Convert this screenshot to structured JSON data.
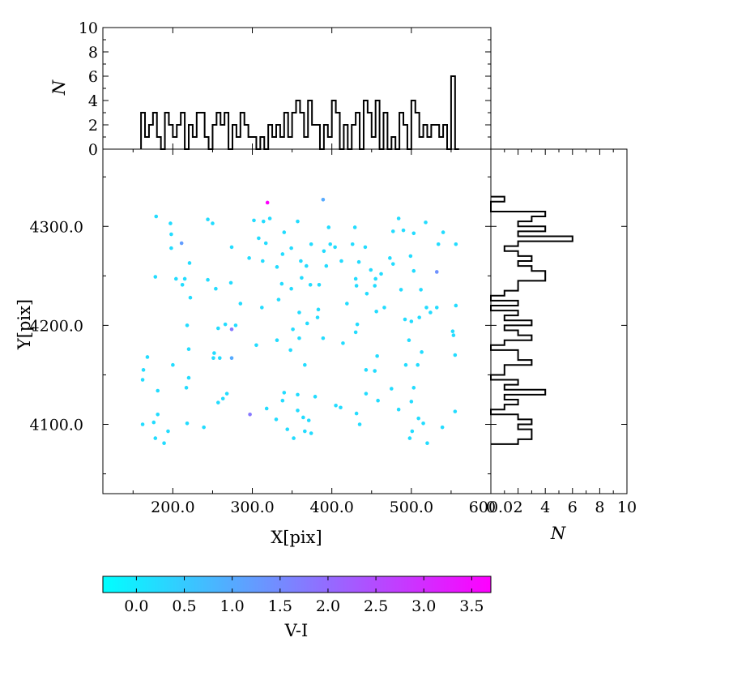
{
  "chart_data": [
    {
      "id": "scatter",
      "type": "scatter",
      "xlabel": "X[pix]",
      "ylabel": "Y[pix]",
      "xlim": [
        112,
        600
      ],
      "ylim": [
        4030,
        4378
      ],
      "xticks": [
        200,
        300,
        400,
        500,
        600
      ],
      "xtick_labels": [
        "200.0",
        "300.0",
        "400.0",
        "500.0",
        "600.0"
      ],
      "yticks": [
        4100,
        4200,
        4300
      ],
      "ytick_labels": [
        "4100.0",
        "4200.0",
        "4300.0"
      ],
      "grid": false,
      "color_by": "V-I",
      "points": [
        {
          "x": 319,
          "y": 4324,
          "c": 3.7
        },
        {
          "x": 389,
          "y": 4327,
          "c": 1.0
        },
        {
          "x": 179,
          "y": 4310,
          "c": 0.2
        },
        {
          "x": 244,
          "y": 4307,
          "c": 0.2
        },
        {
          "x": 302,
          "y": 4306,
          "c": 0.2
        },
        {
          "x": 314,
          "y": 4305,
          "c": 0.2
        },
        {
          "x": 322,
          "y": 4308,
          "c": 0.2
        },
        {
          "x": 357,
          "y": 4305,
          "c": 0.2
        },
        {
          "x": 484,
          "y": 4308,
          "c": 0.2
        },
        {
          "x": 518,
          "y": 4304,
          "c": 0.2
        },
        {
          "x": 197,
          "y": 4303,
          "c": 0.2
        },
        {
          "x": 250,
          "y": 4303,
          "c": 0.2
        },
        {
          "x": 396,
          "y": 4299,
          "c": 0.2
        },
        {
          "x": 429,
          "y": 4299,
          "c": 0.2
        },
        {
          "x": 490,
          "y": 4296,
          "c": 0.2
        },
        {
          "x": 477,
          "y": 4295,
          "c": 0.2
        },
        {
          "x": 340,
          "y": 4294,
          "c": 0.2
        },
        {
          "x": 198,
          "y": 4292,
          "c": 0.2
        },
        {
          "x": 503,
          "y": 4293,
          "c": 0.2
        },
        {
          "x": 540,
          "y": 4294,
          "c": 0.2
        },
        {
          "x": 308,
          "y": 4288,
          "c": 0.2
        },
        {
          "x": 211,
          "y": 4283,
          "c": 1.2
        },
        {
          "x": 317,
          "y": 4283,
          "c": 0.2
        },
        {
          "x": 374,
          "y": 4282,
          "c": 0.2
        },
        {
          "x": 398,
          "y": 4282,
          "c": 0.2
        },
        {
          "x": 404,
          "y": 4279,
          "c": 0.2
        },
        {
          "x": 426,
          "y": 4282,
          "c": 0.2
        },
        {
          "x": 556,
          "y": 4282,
          "c": 0.2
        },
        {
          "x": 534,
          "y": 4282,
          "c": 0.2
        },
        {
          "x": 198,
          "y": 4278,
          "c": 0.2
        },
        {
          "x": 274,
          "y": 4279,
          "c": 0.2
        },
        {
          "x": 349,
          "y": 4278,
          "c": 0.2
        },
        {
          "x": 390,
          "y": 4275,
          "c": 0.2
        },
        {
          "x": 442,
          "y": 4279,
          "c": 0.2
        },
        {
          "x": 338,
          "y": 4272,
          "c": 0.2
        },
        {
          "x": 296,
          "y": 4268,
          "c": 0.2
        },
        {
          "x": 473,
          "y": 4268,
          "c": 0.2
        },
        {
          "x": 499,
          "y": 4270,
          "c": 0.2
        },
        {
          "x": 313,
          "y": 4265,
          "c": 0.2
        },
        {
          "x": 361,
          "y": 4265,
          "c": 0.2
        },
        {
          "x": 412,
          "y": 4265,
          "c": 0.2
        },
        {
          "x": 221,
          "y": 4263,
          "c": 0.2
        },
        {
          "x": 434,
          "y": 4264,
          "c": 0.2
        },
        {
          "x": 477,
          "y": 4262,
          "c": 0.2
        },
        {
          "x": 331,
          "y": 4259,
          "c": 0.2
        },
        {
          "x": 368,
          "y": 4260,
          "c": 0.2
        },
        {
          "x": 393,
          "y": 4260,
          "c": 0.2
        },
        {
          "x": 449,
          "y": 4256,
          "c": 0.2
        },
        {
          "x": 462,
          "y": 4252,
          "c": 0.2
        },
        {
          "x": 503,
          "y": 4255,
          "c": 0.2
        },
        {
          "x": 532,
          "y": 4254,
          "c": 1.4
        },
        {
          "x": 178,
          "y": 4249,
          "c": 0.2
        },
        {
          "x": 204,
          "y": 4247,
          "c": 0.2
        },
        {
          "x": 215,
          "y": 4247,
          "c": 0.2
        },
        {
          "x": 244,
          "y": 4246,
          "c": 0.2
        },
        {
          "x": 362,
          "y": 4248,
          "c": 0.2
        },
        {
          "x": 430,
          "y": 4247,
          "c": 0.2
        },
        {
          "x": 455,
          "y": 4247,
          "c": 0.2
        },
        {
          "x": 273,
          "y": 4243,
          "c": 0.2
        },
        {
          "x": 337,
          "y": 4242,
          "c": 0.2
        },
        {
          "x": 212,
          "y": 4241,
          "c": 0.2
        },
        {
          "x": 373,
          "y": 4241,
          "c": 0.2
        },
        {
          "x": 384,
          "y": 4241,
          "c": 0.2
        },
        {
          "x": 431,
          "y": 4240,
          "c": 0.2
        },
        {
          "x": 454,
          "y": 4240,
          "c": 0.2
        },
        {
          "x": 254,
          "y": 4237,
          "c": 0.2
        },
        {
          "x": 349,
          "y": 4237,
          "c": 0.2
        },
        {
          "x": 487,
          "y": 4236,
          "c": 0.2
        },
        {
          "x": 512,
          "y": 4236,
          "c": 0.2
        },
        {
          "x": 444,
          "y": 4232,
          "c": 0.2
        },
        {
          "x": 222,
          "y": 4228,
          "c": 0.2
        },
        {
          "x": 333,
          "y": 4226,
          "c": 0.2
        },
        {
          "x": 285,
          "y": 4222,
          "c": 0.2
        },
        {
          "x": 419,
          "y": 4222,
          "c": 0.2
        },
        {
          "x": 466,
          "y": 4218,
          "c": 0.2
        },
        {
          "x": 519,
          "y": 4218,
          "c": 0.2
        },
        {
          "x": 532,
          "y": 4218,
          "c": 0.2
        },
        {
          "x": 556,
          "y": 4220,
          "c": 0.2
        },
        {
          "x": 312,
          "y": 4218,
          "c": 0.2
        },
        {
          "x": 359,
          "y": 4213,
          "c": 0.2
        },
        {
          "x": 383,
          "y": 4216,
          "c": 0.2
        },
        {
          "x": 456,
          "y": 4214,
          "c": 0.2
        },
        {
          "x": 524,
          "y": 4213,
          "c": 0.2
        },
        {
          "x": 382,
          "y": 4208,
          "c": 0.2
        },
        {
          "x": 510,
          "y": 4208,
          "c": 0.2
        },
        {
          "x": 492,
          "y": 4206,
          "c": 0.2
        },
        {
          "x": 500,
          "y": 4204,
          "c": 0.2
        },
        {
          "x": 369,
          "y": 4202,
          "c": 0.2
        },
        {
          "x": 279,
          "y": 4200,
          "c": 0.2
        },
        {
          "x": 432,
          "y": 4201,
          "c": 0.2
        },
        {
          "x": 218,
          "y": 4200,
          "c": 0.2
        },
        {
          "x": 266,
          "y": 4201,
          "c": 0.2
        },
        {
          "x": 274,
          "y": 4196,
          "c": 1.8
        },
        {
          "x": 257,
          "y": 4197,
          "c": 0.2
        },
        {
          "x": 351,
          "y": 4196,
          "c": 0.2
        },
        {
          "x": 552,
          "y": 4194,
          "c": 0.2
        },
        {
          "x": 553,
          "y": 4190,
          "c": 0.2
        },
        {
          "x": 430,
          "y": 4193,
          "c": 0.2
        },
        {
          "x": 359,
          "y": 4187,
          "c": 0.2
        },
        {
          "x": 389,
          "y": 4187,
          "c": 0.2
        },
        {
          "x": 331,
          "y": 4185,
          "c": 0.2
        },
        {
          "x": 497,
          "y": 4185,
          "c": 0.2
        },
        {
          "x": 414,
          "y": 4182,
          "c": 0.2
        },
        {
          "x": 305,
          "y": 4180,
          "c": 0.2
        },
        {
          "x": 220,
          "y": 4176,
          "c": 0.2
        },
        {
          "x": 348,
          "y": 4175,
          "c": 0.2
        },
        {
          "x": 513,
          "y": 4173,
          "c": 0.2
        },
        {
          "x": 252,
          "y": 4172,
          "c": 0.2
        },
        {
          "x": 168,
          "y": 4168,
          "c": 0.2
        },
        {
          "x": 251,
          "y": 4167,
          "c": 0.2
        },
        {
          "x": 259,
          "y": 4167,
          "c": 0.2
        },
        {
          "x": 274,
          "y": 4167,
          "c": 1.0
        },
        {
          "x": 457,
          "y": 4169,
          "c": 0.2
        },
        {
          "x": 555,
          "y": 4170,
          "c": 0.2
        },
        {
          "x": 200,
          "y": 4160,
          "c": 0.2
        },
        {
          "x": 366,
          "y": 4160,
          "c": 0.2
        },
        {
          "x": 493,
          "y": 4160,
          "c": 0.2
        },
        {
          "x": 508,
          "y": 4160,
          "c": 0.2
        },
        {
          "x": 163,
          "y": 4155,
          "c": 0.2
        },
        {
          "x": 443,
          "y": 4155,
          "c": 0.2
        },
        {
          "x": 454,
          "y": 4154,
          "c": 0.2
        },
        {
          "x": 220,
          "y": 4147,
          "c": 0.2
        },
        {
          "x": 162,
          "y": 4145,
          "c": 0.2
        },
        {
          "x": 217,
          "y": 4137,
          "c": 0.2
        },
        {
          "x": 475,
          "y": 4136,
          "c": 0.2
        },
        {
          "x": 503,
          "y": 4137,
          "c": 0.2
        },
        {
          "x": 181,
          "y": 4134,
          "c": 0.2
        },
        {
          "x": 340,
          "y": 4132,
          "c": 0.2
        },
        {
          "x": 268,
          "y": 4131,
          "c": 0.2
        },
        {
          "x": 357,
          "y": 4130,
          "c": 0.2
        },
        {
          "x": 443,
          "y": 4131,
          "c": 0.2
        },
        {
          "x": 379,
          "y": 4128,
          "c": 0.2
        },
        {
          "x": 263,
          "y": 4126,
          "c": 0.2
        },
        {
          "x": 338,
          "y": 4124,
          "c": 0.2
        },
        {
          "x": 458,
          "y": 4124,
          "c": 0.2
        },
        {
          "x": 257,
          "y": 4122,
          "c": 0.2
        },
        {
          "x": 500,
          "y": 4123,
          "c": 0.2
        },
        {
          "x": 405,
          "y": 4119,
          "c": 0.2
        },
        {
          "x": 411,
          "y": 4117,
          "c": 0.2
        },
        {
          "x": 318,
          "y": 4116,
          "c": 0.2
        },
        {
          "x": 357,
          "y": 4114,
          "c": 0.2
        },
        {
          "x": 484,
          "y": 4115,
          "c": 0.2
        },
        {
          "x": 555,
          "y": 4113,
          "c": 0.2
        },
        {
          "x": 181,
          "y": 4110,
          "c": 0.2
        },
        {
          "x": 297,
          "y": 4110,
          "c": 1.8
        },
        {
          "x": 431,
          "y": 4111,
          "c": 0.2
        },
        {
          "x": 364,
          "y": 4107,
          "c": 0.2
        },
        {
          "x": 330,
          "y": 4105,
          "c": 0.2
        },
        {
          "x": 509,
          "y": 4106,
          "c": 0.2
        },
        {
          "x": 371,
          "y": 4104,
          "c": 0.2
        },
        {
          "x": 176,
          "y": 4102,
          "c": 0.2
        },
        {
          "x": 218,
          "y": 4101,
          "c": 0.2
        },
        {
          "x": 162,
          "y": 4100,
          "c": 0.2
        },
        {
          "x": 435,
          "y": 4100,
          "c": 0.2
        },
        {
          "x": 515,
          "y": 4101,
          "c": 0.2
        },
        {
          "x": 539,
          "y": 4097,
          "c": 0.2
        },
        {
          "x": 239,
          "y": 4097,
          "c": 0.2
        },
        {
          "x": 344,
          "y": 4095,
          "c": 0.2
        },
        {
          "x": 194,
          "y": 4093,
          "c": 0.2
        },
        {
          "x": 366,
          "y": 4093,
          "c": 0.2
        },
        {
          "x": 374,
          "y": 4091,
          "c": 0.2
        },
        {
          "x": 501,
          "y": 4093,
          "c": 0.2
        },
        {
          "x": 352,
          "y": 4086,
          "c": 0.2
        },
        {
          "x": 178,
          "y": 4086,
          "c": 0.2
        },
        {
          "x": 498,
          "y": 4086,
          "c": 0.2
        },
        {
          "x": 189,
          "y": 4081,
          "c": 0.2
        },
        {
          "x": 520,
          "y": 4081,
          "c": 0.2
        }
      ]
    },
    {
      "id": "hist-x",
      "type": "bar",
      "kind": "step-histogram",
      "ylabel": "N",
      "ylim": [
        0,
        10
      ],
      "yticks": [
        0,
        2,
        4,
        6,
        8,
        10
      ],
      "ytick_labels": [
        "0",
        "2",
        "4",
        "6",
        "8",
        "10"
      ],
      "bin_edges": [
        160,
        165,
        170,
        175,
        180,
        185,
        190,
        195,
        200,
        205,
        210,
        215,
        220,
        225,
        230,
        235,
        240,
        245,
        250,
        255,
        260,
        265,
        270,
        275,
        280,
        285,
        290,
        295,
        300,
        305,
        310,
        315,
        320,
        325,
        330,
        335,
        340,
        345,
        350,
        355,
        360,
        365,
        370,
        375,
        380,
        385,
        390,
        395,
        400,
        405,
        410,
        415,
        420,
        425,
        430,
        435,
        440,
        445,
        450,
        455,
        460,
        465,
        470,
        475,
        480,
        485,
        490,
        495,
        500,
        505,
        510,
        515,
        520,
        525,
        530,
        535,
        540,
        545,
        550,
        555,
        560
      ],
      "counts": [
        3,
        1,
        2,
        3,
        1,
        0,
        3,
        2,
        1,
        2,
        3,
        0,
        2,
        1,
        3,
        3,
        1,
        0,
        2,
        3,
        2,
        3,
        0,
        2,
        1,
        3,
        2,
        1,
        1,
        0,
        1,
        0,
        2,
        1,
        2,
        1,
        3,
        1,
        3,
        4,
        3,
        1,
        4,
        2,
        2,
        0,
        2,
        1,
        4,
        3,
        0,
        2,
        0,
        2,
        3,
        0,
        4,
        3,
        1,
        4,
        0,
        3,
        0,
        1,
        0,
        3,
        2,
        0,
        4,
        3,
        1,
        2,
        1,
        2,
        2,
        1,
        2,
        0,
        6,
        0
      ]
    },
    {
      "id": "hist-y",
      "type": "bar",
      "kind": "step-histogram-horizontal",
      "xlabel": "N",
      "xlim": [
        0,
        10
      ],
      "xticks": [
        0,
        2,
        4,
        6,
        8,
        10
      ],
      "xtick_labels": [
        "0",
        "2",
        "4",
        "6",
        "8",
        "10"
      ],
      "bin_edges": [
        4080,
        4085,
        4090,
        4095,
        4100,
        4105,
        4110,
        4115,
        4120,
        4125,
        4130,
        4135,
        4140,
        4145,
        4150,
        4155,
        4160,
        4165,
        4170,
        4175,
        4180,
        4185,
        4190,
        4195,
        4200,
        4205,
        4210,
        4215,
        4220,
        4225,
        4230,
        4235,
        4240,
        4245,
        4250,
        4255,
        4260,
        4265,
        4270,
        4275,
        4280,
        4285,
        4290,
        4295,
        4300,
        4305,
        4310,
        4315,
        4320,
        4325,
        4330
      ],
      "counts": [
        2,
        3,
        3,
        2,
        3,
        2,
        0,
        1,
        2,
        1,
        4,
        1,
        2,
        0,
        1,
        1,
        3,
        2,
        2,
        0,
        1,
        3,
        2,
        1,
        3,
        1,
        2,
        0,
        2,
        0,
        1,
        2,
        2,
        4,
        4,
        3,
        2,
        3,
        2,
        1,
        2,
        6,
        2,
        4,
        2,
        3,
        4,
        0,
        0,
        1
      ]
    },
    {
      "id": "colorbar",
      "type": "heatmap",
      "kind": "colorbar",
      "xlabel": "V-I",
      "range": [
        -0.35,
        3.7
      ],
      "colormap": [
        "#00ffff",
        "#ff00ff"
      ],
      "ticks": [
        0.0,
        0.5,
        1.0,
        1.5,
        2.0,
        2.5,
        3.0,
        3.5
      ],
      "tick_labels": [
        "0.0",
        "0.5",
        "1.0",
        "1.5",
        "2.0",
        "2.5",
        "3.0",
        "3.5"
      ]
    }
  ]
}
